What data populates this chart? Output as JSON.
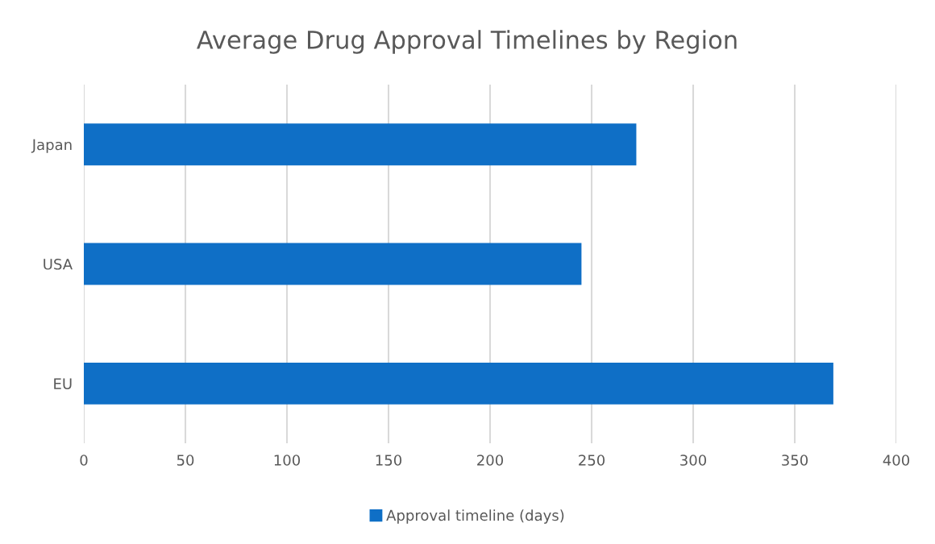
{
  "chart_data": {
    "type": "bar",
    "orientation": "horizontal",
    "title": "Average Drug Approval Timelines by Region",
    "categories": [
      "Japan",
      "USA",
      "EU"
    ],
    "series": [
      {
        "name": "Approval timeline (days)",
        "color": "#0f6fc6",
        "values": [
          272,
          245,
          369
        ]
      }
    ],
    "xlim": [
      0,
      400
    ],
    "xticks": [
      0,
      50,
      100,
      150,
      200,
      250,
      300,
      350,
      400
    ],
    "grid": "x",
    "legend": "bottom"
  }
}
